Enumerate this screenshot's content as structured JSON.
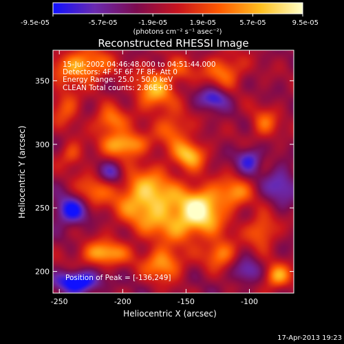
{
  "chart_data": {
    "type": "heatmap",
    "title": "Reconstructed RHESSI Image",
    "xlabel": "Heliocentric X (arcsec)",
    "ylabel": "Heliocentric Y (arcsec)",
    "xlim": [
      -255,
      -65
    ],
    "ylim": [
      183,
      374
    ],
    "x_ticks": [
      -250,
      -200,
      -150,
      -100
    ],
    "y_ticks": [
      200,
      250,
      300,
      350
    ],
    "colorbar": {
      "min": -9.5e-05,
      "max": 9.5e-05,
      "tick_labels": [
        "-9.5e-05",
        "-5.7e-05",
        "-1.9e-05",
        "1.9e-05",
        "5.7e-05",
        "9.5e-05"
      ],
      "units": "(photons cm⁻² s⁻¹ asec⁻²)",
      "colormap": [
        "#1010ff",
        "#6a2ab0",
        "#7d0b4f",
        "#c8141e",
        "#ff5a00",
        "#ffc020",
        "#ffffc8"
      ]
    },
    "annotations": [
      "15-Jul-2002 04:46:48.000 to 04:51:44.000",
      "Detectors: 4F 5F 6F 7F 8F, Att 0",
      "Energy Range: 25.0 - 50.0 keV",
      "CLEAN    Total counts: 2.86E+03"
    ],
    "peak_label": "Position of Peak = [-136,249]",
    "peak": {
      "x": -136,
      "y": 249
    },
    "sources": [
      {
        "x": -180,
        "y": 258,
        "sx": 18,
        "sy": 16,
        "a": 9.5e-05
      },
      {
        "x": -138,
        "y": 252,
        "sx": 12,
        "sy": 11,
        "a": 9e-05
      },
      {
        "x": -150,
        "y": 236,
        "sx": 20,
        "sy": 10,
        "a": 6e-05
      },
      {
        "x": -232,
        "y": 362,
        "sx": 16,
        "sy": 9,
        "a": 8e-05
      },
      {
        "x": -175,
        "y": 342,
        "sx": 11,
        "sy": 12,
        "a": 7.5e-05
      },
      {
        "x": -210,
        "y": 318,
        "sx": 9,
        "sy": 8,
        "a": 6.5e-05
      },
      {
        "x": -160,
        "y": 312,
        "sx": 9,
        "sy": 9,
        "a": 5.5e-05
      },
      {
        "x": -198,
        "y": 300,
        "sx": 12,
        "sy": 7,
        "a": 8.5e-05
      },
      {
        "x": -147,
        "y": 292,
        "sx": 9,
        "sy": 8,
        "a": 8e-05
      },
      {
        "x": -112,
        "y": 262,
        "sx": 10,
        "sy": 9,
        "a": 6e-05
      },
      {
        "x": -225,
        "y": 262,
        "sx": 9,
        "sy": 10,
        "a": 5e-05
      },
      {
        "x": -120,
        "y": 358,
        "sx": 11,
        "sy": 9,
        "a": 6e-05
      },
      {
        "x": -88,
        "y": 316,
        "sx": 8,
        "sy": 9,
        "a": 5e-05
      },
      {
        "x": -215,
        "y": 214,
        "sx": 13,
        "sy": 7,
        "a": 8e-05
      },
      {
        "x": -168,
        "y": 206,
        "sx": 11,
        "sy": 9,
        "a": 7.5e-05
      },
      {
        "x": -123,
        "y": 214,
        "sx": 9,
        "sy": 8,
        "a": 6.5e-05
      },
      {
        "x": -90,
        "y": 232,
        "sx": 8,
        "sy": 9,
        "a": 6e-05
      },
      {
        "x": -78,
        "y": 196,
        "sx": 8,
        "sy": 7,
        "a": 7.5e-05
      },
      {
        "x": -240,
        "y": 292,
        "sx": 7,
        "sy": 7,
        "a": 4.5e-05
      },
      {
        "x": -245,
        "y": 330,
        "sx": 8,
        "sy": 10,
        "a": 5e-05
      },
      {
        "x": -155,
        "y": 358,
        "sx": 9,
        "sy": 7,
        "a": 4e-05
      },
      {
        "x": -100,
        "y": 288,
        "sx": 7,
        "sy": 7,
        "a": -6e-05
      },
      {
        "x": -240,
        "y": 248,
        "sx": 10,
        "sy": 8,
        "a": -8e-05
      },
      {
        "x": -235,
        "y": 192,
        "sx": 12,
        "sy": 6,
        "a": -9.5e-05
      },
      {
        "x": -128,
        "y": 336,
        "sx": 8,
        "sy": 6,
        "a": -6e-05
      },
      {
        "x": -75,
        "y": 268,
        "sx": 9,
        "sy": 10,
        "a": -5e-05
      },
      {
        "x": -208,
        "y": 278,
        "sx": 7,
        "sy": 6,
        "a": -5e-05
      },
      {
        "x": -102,
        "y": 200,
        "sx": 8,
        "sy": 7,
        "a": -4.5e-05
      }
    ]
  },
  "footer": {
    "date": "17-Apr-2013 19:23"
  }
}
